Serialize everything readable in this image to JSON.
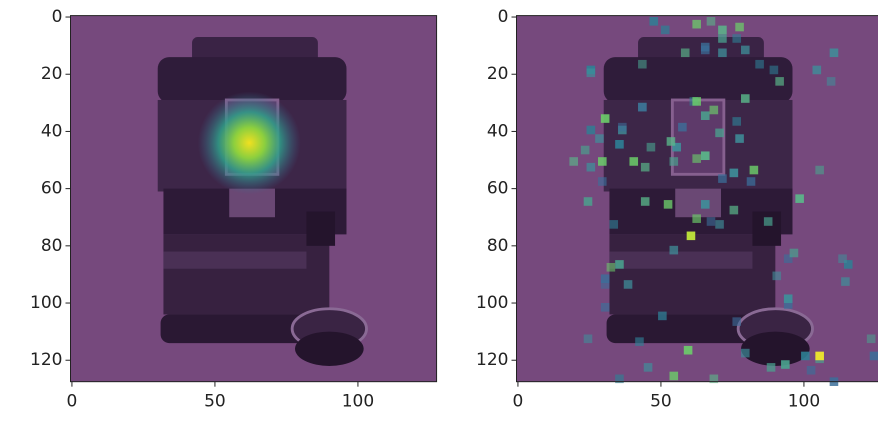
{
  "chart_data": [
    {
      "type": "image",
      "xlim": [
        -0.5,
        127.5
      ],
      "ylim": [
        127.5,
        -0.5
      ],
      "xticks": [
        0,
        50,
        100
      ],
      "yticks": [
        0,
        20,
        40,
        60,
        80,
        100,
        120
      ]
    },
    {
      "type": "image",
      "xlim": [
        -0.5,
        127.5
      ],
      "ylim": [
        127.5,
        -0.5
      ],
      "xticks": [
        0,
        50,
        100
      ],
      "yticks": [
        0,
        20,
        40,
        60,
        80,
        100,
        120
      ]
    }
  ]
}
